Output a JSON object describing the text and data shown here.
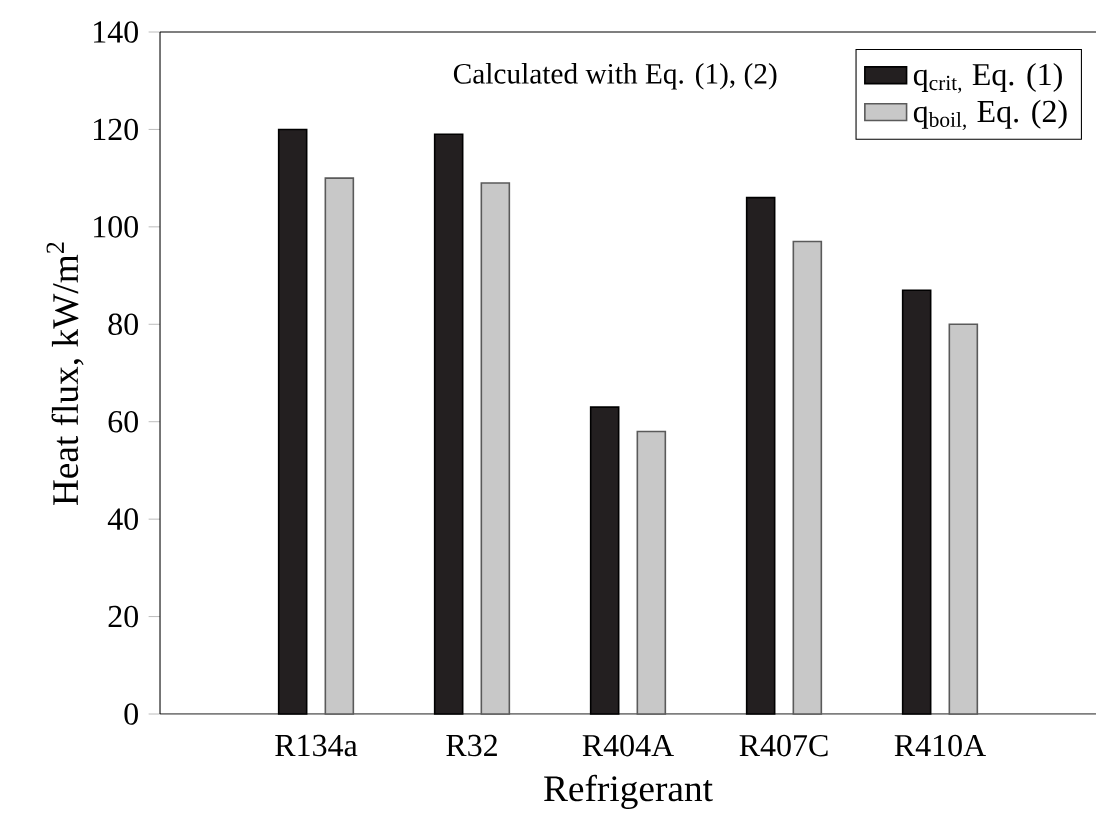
{
  "chart_data": {
    "type": "bar",
    "xlabel": "Refrigerant",
    "ylabel": "Heat flux, kW/m$^{2}$",
    "categories": [
      "R134a",
      "R32",
      "R404A",
      "R407C",
      "R410A"
    ],
    "series": [
      {
        "name": "q$_{crit,}$ Eq. (1)",
        "color": "#231f20",
        "values": [
          120,
          119,
          63,
          106,
          87
        ]
      },
      {
        "name": "q$_{boil,}$ Eq. (2)",
        "color": "#c8c8c8",
        "values": [
          110,
          109,
          58,
          97,
          80
        ]
      }
    ],
    "ylim": [
      0,
      140
    ],
    "yticks": [
      0,
      20,
      40,
      60,
      80,
      100,
      120,
      140
    ],
    "legend": "top right",
    "grid": false,
    "annotations": [
      "Calculated with Eq. (1), (2)"
    ]
  }
}
